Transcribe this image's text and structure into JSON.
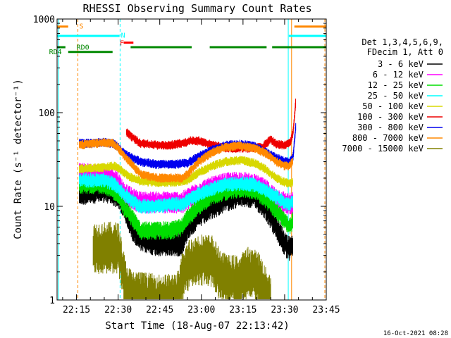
{
  "chart_data": {
    "type": "line",
    "title": "RHESSI Observing Summary Count Rates",
    "xlabel": "Start Time (18-Aug-07 22:13:42)",
    "ylabel": "Count Rate (s⁻¹ detector⁻¹)",
    "ylim": [
      1,
      1000
    ],
    "ylog": true,
    "xlim_minutes": [
      -3,
      94
    ],
    "x_ticks": [
      {
        "t": 4,
        "label": "22:15"
      },
      {
        "t": 19,
        "label": "22:30"
      },
      {
        "t": 34,
        "label": "22:45"
      },
      {
        "t": 49,
        "label": "23:00"
      },
      {
        "t": 64,
        "label": "23:15"
      },
      {
        "t": 79,
        "label": "23:30"
      },
      {
        "t": 94,
        "label": "23:45"
      }
    ],
    "y_ticks": [
      {
        "v": 1,
        "label": "1"
      },
      {
        "v": 10,
        "label": "10"
      },
      {
        "v": 100,
        "label": "100"
      },
      {
        "v": 1000,
        "label": "1000"
      }
    ],
    "legend_header": [
      "Det 1,3,4,5,6,9,",
      "FDecim 1, Att 0"
    ],
    "timestamp": "16-Oct-2021 08:28",
    "series": [
      {
        "name": "3 - 6 keV",
        "color": "#000000",
        "noise": 0.14,
        "points": [
          [
            5,
            14
          ],
          [
            14,
            15
          ],
          [
            17,
            14
          ],
          [
            19,
            13
          ],
          [
            21,
            10
          ],
          [
            24,
            6
          ],
          [
            27,
            4.5
          ],
          [
            33,
            4
          ],
          [
            38,
            4
          ],
          [
            42,
            4
          ],
          [
            44,
            6
          ],
          [
            48,
            8
          ],
          [
            53,
            10
          ],
          [
            58,
            12
          ],
          [
            63,
            13.5
          ],
          [
            68,
            13
          ],
          [
            72,
            10
          ],
          [
            76,
            6
          ],
          [
            79,
            4
          ],
          [
            80.5,
            3.5
          ],
          [
            82,
            4
          ]
        ]
      },
      {
        "name": "6 - 12 keV",
        "color": "#ff00ff",
        "noise": 0.12,
        "points": [
          [
            5,
            22
          ],
          [
            14,
            22
          ],
          [
            17,
            20
          ],
          [
            19,
            18
          ],
          [
            21,
            14
          ],
          [
            24,
            12
          ],
          [
            27,
            11
          ],
          [
            33,
            11
          ],
          [
            38,
            11
          ],
          [
            42,
            11
          ],
          [
            44,
            12
          ],
          [
            48,
            14
          ],
          [
            53,
            16
          ],
          [
            58,
            17.5
          ],
          [
            63,
            18
          ],
          [
            68,
            17
          ],
          [
            72,
            15
          ],
          [
            76,
            12
          ],
          [
            79,
            11
          ],
          [
            80.5,
            10.5
          ],
          [
            82,
            11
          ]
        ]
      },
      {
        "name": "12 - 25 keV",
        "color": "#00dd00",
        "noise": 0.1,
        "points": [
          [
            5,
            17
          ],
          [
            14,
            17
          ],
          [
            17,
            15
          ],
          [
            19,
            13
          ],
          [
            21,
            10
          ],
          [
            24,
            7.5
          ],
          [
            27,
            5.5
          ],
          [
            33,
            5.5
          ],
          [
            38,
            5.5
          ],
          [
            42,
            6
          ],
          [
            44,
            7.5
          ],
          [
            48,
            10
          ],
          [
            53,
            13
          ],
          [
            58,
            14.5
          ],
          [
            63,
            15.5
          ],
          [
            68,
            15
          ],
          [
            72,
            12
          ],
          [
            76,
            9
          ],
          [
            79,
            7
          ],
          [
            80.5,
            6
          ],
          [
            82,
            7
          ]
        ]
      },
      {
        "name": "25 - 50 keV",
        "color": "#00ffff",
        "noise": 0.08,
        "points": [
          [
            5,
            19
          ],
          [
            14,
            19
          ],
          [
            17,
            17.5
          ],
          [
            19,
            16
          ],
          [
            21,
            13.5
          ],
          [
            24,
            11.5
          ],
          [
            27,
            10
          ],
          [
            33,
            10
          ],
          [
            38,
            10.5
          ],
          [
            42,
            10.5
          ],
          [
            44,
            11.5
          ],
          [
            48,
            13.5
          ],
          [
            53,
            15.5
          ],
          [
            58,
            17
          ],
          [
            63,
            17.5
          ],
          [
            68,
            17
          ],
          [
            72,
            15
          ],
          [
            76,
            12.5
          ],
          [
            79,
            11
          ],
          [
            80.5,
            10.5
          ],
          [
            82,
            11
          ]
        ]
      },
      {
        "name": "50 - 100 keV",
        "color": "#d8d800",
        "noise": 0.05,
        "points": [
          [
            5,
            25
          ],
          [
            14,
            26
          ],
          [
            17,
            27
          ],
          [
            19,
            26
          ],
          [
            21,
            23
          ],
          [
            24,
            20
          ],
          [
            27,
            18.5
          ],
          [
            33,
            18
          ],
          [
            38,
            18
          ],
          [
            42,
            18.5
          ],
          [
            44,
            19
          ],
          [
            48,
            23
          ],
          [
            53,
            27
          ],
          [
            58,
            30
          ],
          [
            63,
            31
          ],
          [
            68,
            29
          ],
          [
            72,
            25
          ],
          [
            76,
            20
          ],
          [
            79,
            18
          ],
          [
            80.5,
            17.5
          ],
          [
            82,
            18
          ]
        ]
      },
      {
        "name": "100 - 300 keV",
        "color": "#ee0000",
        "noise": 0.05,
        "points": [
          [
            22,
            62
          ],
          [
            24,
            55
          ],
          [
            27,
            47
          ],
          [
            33,
            45
          ],
          [
            38,
            45
          ],
          [
            42,
            47
          ],
          [
            45,
            50
          ],
          [
            48,
            50
          ],
          [
            53,
            45
          ],
          [
            58,
            42
          ],
          [
            63,
            42
          ],
          [
            68,
            42
          ],
          [
            71,
            43
          ],
          [
            74,
            52
          ],
          [
            76,
            46
          ],
          [
            79,
            45
          ],
          [
            81,
            48
          ],
          [
            82,
            60
          ],
          [
            83,
            130
          ]
        ]
      },
      {
        "name": "300 - 800 keV",
        "color": "#0000ee",
        "noise": 0.05,
        "points": [
          [
            5,
            47
          ],
          [
            14,
            48
          ],
          [
            17,
            47
          ],
          [
            19,
            43
          ],
          [
            21,
            37
          ],
          [
            24,
            33
          ],
          [
            27,
            30
          ],
          [
            33,
            28
          ],
          [
            38,
            28
          ],
          [
            42,
            28.5
          ],
          [
            44,
            29
          ],
          [
            48,
            34
          ],
          [
            53,
            40
          ],
          [
            58,
            45
          ],
          [
            63,
            46
          ],
          [
            68,
            44
          ],
          [
            72,
            38
          ],
          [
            76,
            33
          ],
          [
            79,
            30
          ],
          [
            80.5,
            30
          ],
          [
            82,
            33
          ],
          [
            83,
            70
          ]
        ]
      },
      {
        "name": "800 - 7000 keV",
        "color": "#ff8800",
        "noise": 0.05,
        "points": [
          [
            5,
            45
          ],
          [
            14,
            48
          ],
          [
            17,
            47
          ],
          [
            19,
            42
          ],
          [
            21,
            35
          ],
          [
            24,
            28
          ],
          [
            27,
            22
          ],
          [
            33,
            20
          ],
          [
            38,
            20
          ],
          [
            42,
            20
          ],
          [
            44,
            22
          ],
          [
            48,
            30
          ],
          [
            53,
            38
          ],
          [
            58,
            43
          ],
          [
            63,
            44
          ],
          [
            68,
            42
          ],
          [
            72,
            37
          ],
          [
            76,
            30
          ],
          [
            79,
            27
          ],
          [
            80.5,
            27
          ],
          [
            82,
            30
          ]
        ]
      },
      {
        "name": "7000 - 15000 keV",
        "color": "#808000",
        "noise": 0.28,
        "points": [
          [
            10,
            3.6
          ],
          [
            19,
            3.6
          ],
          [
            20,
            2.6
          ],
          [
            21,
            1.8
          ],
          [
            22,
            1.3
          ],
          [
            24,
            1.1
          ],
          [
            33,
            1.0
          ],
          [
            38,
            1.0
          ],
          [
            41,
            1.1
          ],
          [
            42,
            1.7
          ],
          [
            44,
            2.3
          ],
          [
            48,
            2.7
          ],
          [
            53,
            2.6
          ],
          [
            55,
            2.0
          ],
          [
            58,
            1.6
          ],
          [
            63,
            1.6
          ],
          [
            66,
            2.0
          ],
          [
            70,
            1.7
          ],
          [
            72,
            1.2
          ],
          [
            74,
            1.05
          ]
        ]
      }
    ],
    "annotations": [
      {
        "label": "S",
        "color": "#ff8800"
      },
      {
        "label": "N",
        "color": "#00ffff"
      },
      {
        "label": "F",
        "color": "#ff0000"
      },
      {
        "label": "RD0",
        "color": "#008800"
      },
      {
        "label": "RD4",
        "color": "#008800"
      }
    ],
    "flag_bars": [
      {
        "color": "#ff8800",
        "value": 830,
        "segments": [
          [
            -3,
            1
          ],
          [
            82.5,
            94
          ]
        ]
      },
      {
        "color": "#00ffff",
        "value": 660,
        "segments": [
          [
            -3,
            19.5
          ],
          [
            80.5,
            94
          ]
        ]
      },
      {
        "color": "#ff0000",
        "value": 560,
        "segments": [
          [
            21,
            24.5
          ]
        ]
      },
      {
        "color": "#008800",
        "value": 500,
        "segments": [
          [
            -3,
            0
          ],
          [
            23.5,
            45.5
          ],
          [
            52,
            72.5
          ],
          [
            74.5,
            94
          ]
        ]
      },
      {
        "color": "#008800",
        "value": 445,
        "segments": [
          [
            1,
            17
          ]
        ]
      }
    ],
    "vertical_lines": [
      {
        "t": -2.4,
        "color": "#00ffff",
        "dashed": false
      },
      {
        "t": 4.5,
        "color": "#ff8800",
        "dashed": true
      },
      {
        "t": 19.7,
        "color": "#00ffff",
        "dashed": true
      },
      {
        "t": 80.3,
        "color": "#00ffff",
        "dashed": false
      },
      {
        "t": 81.5,
        "color": "#ff8800",
        "dashed": false
      },
      {
        "t": 93.5,
        "color": "#ff8800",
        "dashed": true
      }
    ]
  }
}
